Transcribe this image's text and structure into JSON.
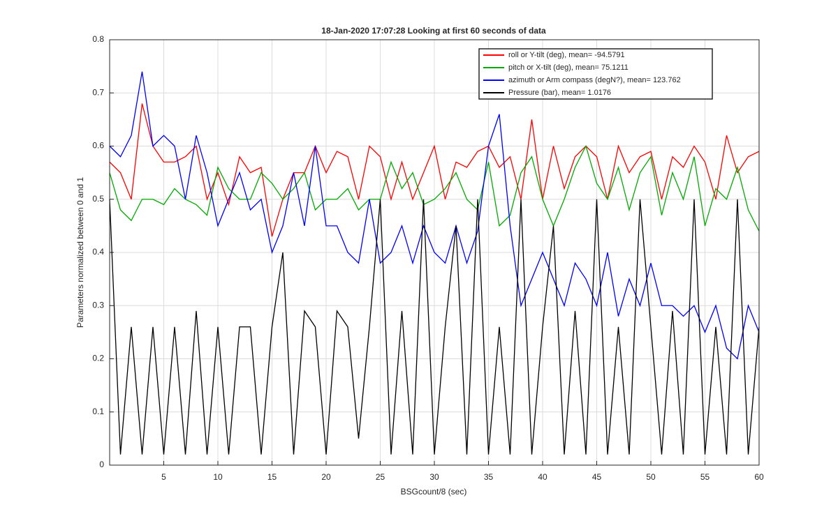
{
  "chart_data": {
    "type": "line",
    "title": "18-Jan-2020 17:07:28 Looking at first 60 seconds of data",
    "x_label": "BSGcount/8 (sec)",
    "y_label": "Parameters normalized between 0 and 1",
    "x": [
      0,
      1,
      2,
      3,
      4,
      5,
      6,
      7,
      8,
      9,
      10,
      11,
      12,
      13,
      14,
      15,
      16,
      17,
      18,
      19,
      20,
      21,
      22,
      23,
      24,
      25,
      26,
      27,
      28,
      29,
      30,
      31,
      32,
      33,
      34,
      35,
      36,
      37,
      38,
      39,
      40,
      41,
      42,
      43,
      44,
      45,
      46,
      47,
      48,
      49,
      50,
      51,
      52,
      53,
      54,
      55,
      56,
      57,
      58,
      59,
      60
    ],
    "series": [
      {
        "name": "roll or Y-tilt (deg), mean= -94.5791",
        "color": "#ff0000",
        "values": [
          0.57,
          0.55,
          0.5,
          0.68,
          0.6,
          0.57,
          0.57,
          0.58,
          0.6,
          0.5,
          0.55,
          0.49,
          0.58,
          0.55,
          0.56,
          0.43,
          0.5,
          0.55,
          0.55,
          0.6,
          0.55,
          0.59,
          0.58,
          0.5,
          0.6,
          0.58,
          0.5,
          0.57,
          0.5,
          0.55,
          0.6,
          0.5,
          0.57,
          0.56,
          0.59,
          0.6,
          0.56,
          0.58,
          0.5,
          0.65,
          0.5,
          0.6,
          0.52,
          0.58,
          0.6,
          0.58,
          0.5,
          0.6,
          0.55,
          0.58,
          0.59,
          0.5,
          0.58,
          0.56,
          0.6,
          0.57,
          0.5,
          0.62,
          0.55,
          0.58,
          0.59
        ]
      },
      {
        "name": "pitch or X-tilt (deg), mean= 75.1211",
        "color": "#00aa00",
        "values": [
          0.55,
          0.48,
          0.46,
          0.5,
          0.5,
          0.49,
          0.52,
          0.5,
          0.49,
          0.47,
          0.56,
          0.52,
          0.5,
          0.5,
          0.55,
          0.53,
          0.5,
          0.52,
          0.55,
          0.48,
          0.5,
          0.5,
          0.52,
          0.48,
          0.5,
          0.5,
          0.57,
          0.52,
          0.55,
          0.49,
          0.5,
          0.52,
          0.55,
          0.5,
          0.48,
          0.57,
          0.45,
          0.47,
          0.55,
          0.58,
          0.5,
          0.45,
          0.5,
          0.56,
          0.6,
          0.53,
          0.5,
          0.56,
          0.48,
          0.55,
          0.58,
          0.47,
          0.55,
          0.5,
          0.58,
          0.45,
          0.52,
          0.5,
          0.56,
          0.48,
          0.44
        ]
      },
      {
        "name": "azimuth or Arm compass (degN?), mean= 123.762",
        "color": "#0000ff",
        "values": [
          0.6,
          0.58,
          0.62,
          0.74,
          0.6,
          0.62,
          0.6,
          0.5,
          0.62,
          0.55,
          0.45,
          0.5,
          0.55,
          0.48,
          0.5,
          0.4,
          0.45,
          0.55,
          0.45,
          0.6,
          0.45,
          0.45,
          0.4,
          0.38,
          0.5,
          0.38,
          0.4,
          0.45,
          0.38,
          0.45,
          0.4,
          0.38,
          0.45,
          0.38,
          0.44,
          0.6,
          0.66,
          0.45,
          0.3,
          0.35,
          0.4,
          0.35,
          0.3,
          0.38,
          0.35,
          0.3,
          0.4,
          0.28,
          0.35,
          0.3,
          0.38,
          0.3,
          0.3,
          0.28,
          0.3,
          0.25,
          0.3,
          0.22,
          0.2,
          0.3,
          0.25
        ]
      },
      {
        "name": "Pressure (bar), mean= 1.0176",
        "color": "#000000",
        "values": [
          0.5,
          0.02,
          0.26,
          0.02,
          0.26,
          0.02,
          0.26,
          0.02,
          0.29,
          0.02,
          0.26,
          0.02,
          0.26,
          0.26,
          0.02,
          0.26,
          0.4,
          0.02,
          0.29,
          0.26,
          0.02,
          0.29,
          0.26,
          0.05,
          0.26,
          0.5,
          0.02,
          0.29,
          0.02,
          0.5,
          0.02,
          0.26,
          0.45,
          0.02,
          0.5,
          0.02,
          0.26,
          0.02,
          0.5,
          0.02,
          0.26,
          0.45,
          0.02,
          0.29,
          0.02,
          0.5,
          0.02,
          0.26,
          0.02,
          0.5,
          0.26,
          0.02,
          0.29,
          0.02,
          0.5,
          0.02,
          0.26,
          0.02,
          0.5,
          0.02,
          0.26
        ]
      }
    ],
    "xlim": [
      0,
      60
    ],
    "xticks": [
      5,
      10,
      15,
      20,
      25,
      30,
      35,
      40,
      45,
      50,
      55,
      60
    ],
    "ylim": [
      0,
      0.8
    ],
    "yticks": [
      0,
      0.1,
      0.2,
      0.3,
      0.4,
      0.5,
      0.6,
      0.7,
      0.8
    ],
    "grid": true,
    "legend": "northeast"
  }
}
